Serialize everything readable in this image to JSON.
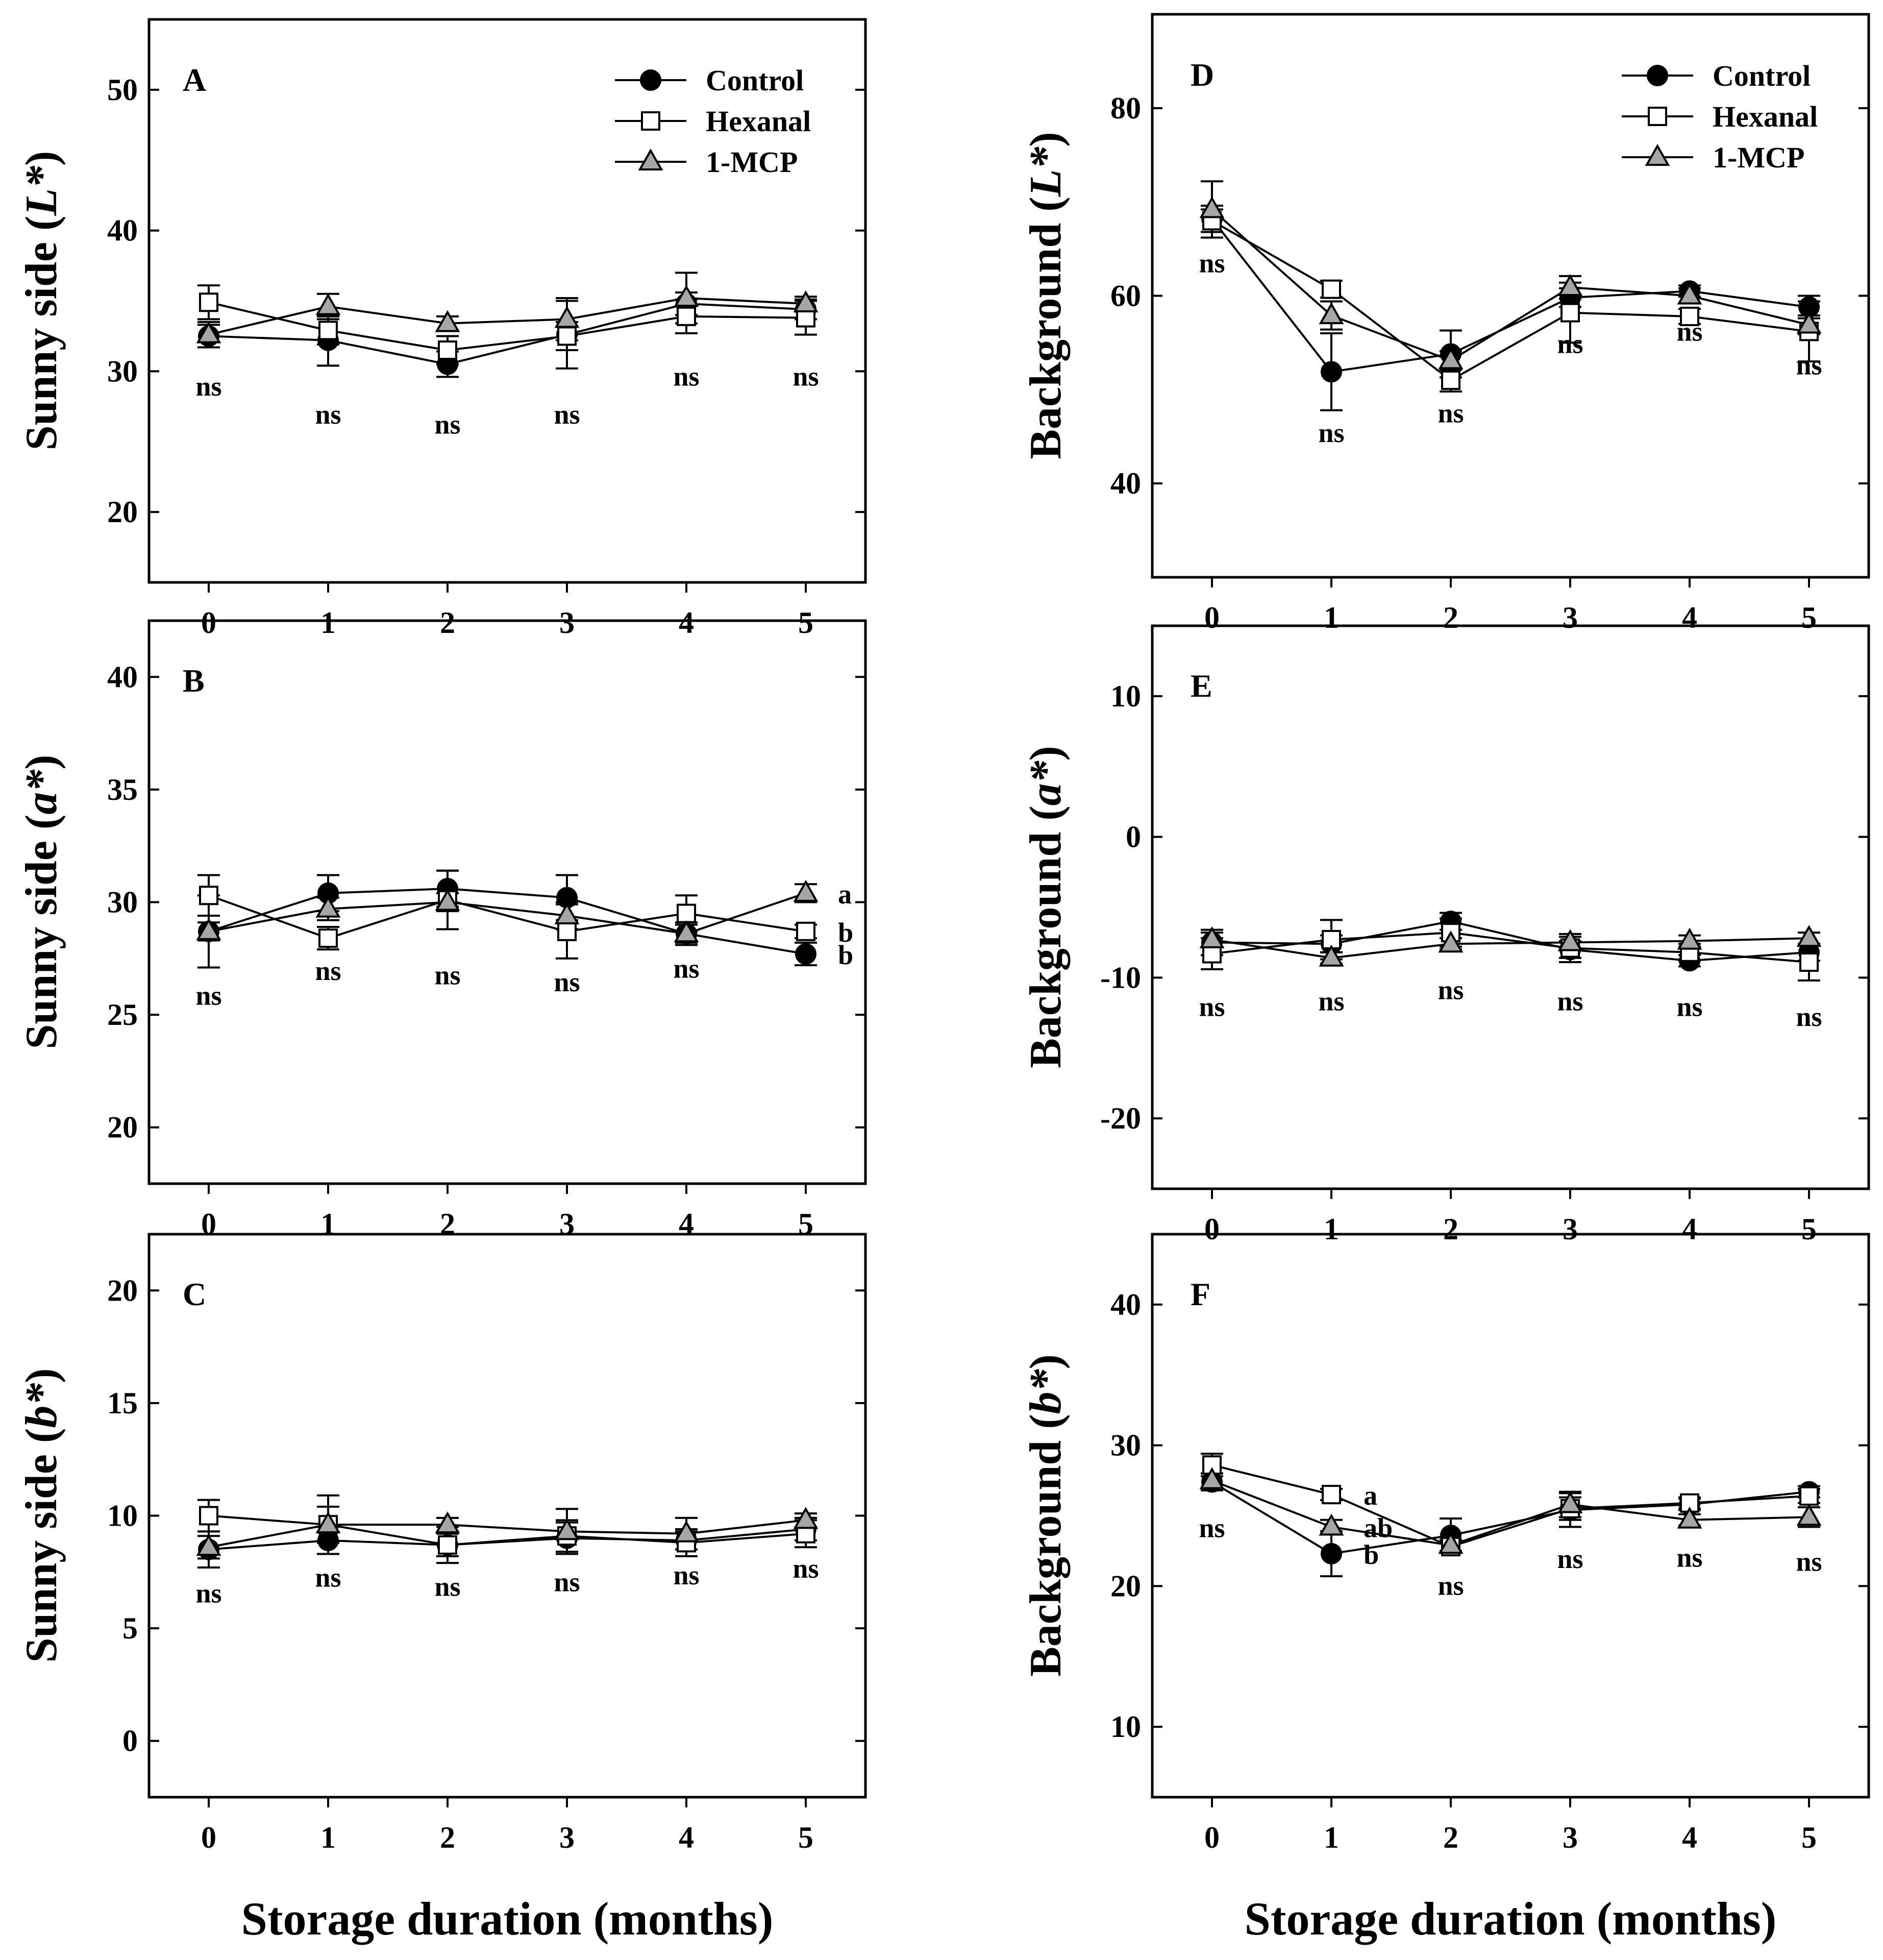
{
  "figure": {
    "xlabel": "Storage duration (months)"
  },
  "legend": {
    "entries": [
      {
        "key": "control",
        "label": "Control"
      },
      {
        "key": "hexanal",
        "label": "Hexanal"
      },
      {
        "key": "mcp",
        "label": "1-MCP"
      }
    ]
  },
  "series_styles": {
    "control": {
      "marker": "circle",
      "fill": "#000000"
    },
    "hexanal": {
      "marker": "square",
      "fill": "#ffffff"
    },
    "mcp": {
      "marker": "triangle",
      "fill": "#a6a6a6"
    }
  },
  "chart_data": [
    {
      "id": "A",
      "type": "line",
      "panel_label": "A",
      "ylabel_prefix": "Sunny side (",
      "ylabel_italic": "L*",
      "ylabel_suffix": ")",
      "x": [
        0,
        1,
        2,
        3,
        4,
        5
      ],
      "xticks": [
        "0",
        "1",
        "2",
        "3",
        "4",
        "5"
      ],
      "ylim": [
        15,
        55
      ],
      "yticks": [
        20,
        30,
        40,
        50
      ],
      "ytick_labels": [
        "20",
        "30",
        "40",
        "50"
      ],
      "legend": true,
      "legend_position": "top-right",
      "series": [
        {
          "key": "control",
          "name": "Control",
          "values": [
            32.5,
            32.2,
            30.5,
            32.6,
            34.8,
            34.4
          ],
          "errors": [
            0.8,
            1.8,
            0.9,
            2.4,
            0.8,
            0.7
          ]
        },
        {
          "key": "hexanal",
          "name": "Hexanal",
          "values": [
            34.9,
            32.9,
            31.5,
            32.5,
            33.9,
            33.8
          ],
          "errors": [
            1.2,
            1.0,
            1.0,
            1.0,
            1.2,
            1.2
          ]
        },
        {
          "key": "mcp",
          "name": "1-MCP",
          "values": [
            32.6,
            34.6,
            33.4,
            33.7,
            35.2,
            34.8
          ],
          "errors": [
            0.9,
            0.9,
            0.5,
            1.5,
            1.8,
            0.5
          ]
        }
      ],
      "annotations": [
        {
          "x": 0,
          "y": 29.0,
          "text": "ns"
        },
        {
          "x": 1,
          "y": 27.0,
          "text": "ns"
        },
        {
          "x": 2,
          "y": 26.3,
          "text": "ns"
        },
        {
          "x": 3,
          "y": 27.0,
          "text": "ns"
        },
        {
          "x": 4,
          "y": 29.7,
          "text": "ns"
        },
        {
          "x": 5,
          "y": 29.7,
          "text": "ns"
        }
      ]
    },
    {
      "id": "B",
      "type": "line",
      "panel_label": "B",
      "ylabel_prefix": "Sunny side (",
      "ylabel_italic": "a*",
      "ylabel_suffix": ")",
      "x": [
        0,
        1,
        2,
        3,
        4,
        5
      ],
      "xticks": [
        "0",
        "1",
        "2",
        "3",
        "4",
        "5"
      ],
      "ylim": [
        17.5,
        42.5
      ],
      "yticks": [
        20,
        25,
        30,
        35,
        40
      ],
      "ytick_labels": [
        "20",
        "25",
        "30",
        "35",
        "40"
      ],
      "legend": false,
      "series": [
        {
          "key": "control",
          "name": "Control",
          "values": [
            28.7,
            30.4,
            30.6,
            30.2,
            28.6,
            27.7
          ],
          "errors": [
            1.6,
            0.8,
            0.8,
            1.0,
            0.5,
            0.5
          ]
        },
        {
          "key": "hexanal",
          "name": "Hexanal",
          "values": [
            30.3,
            28.4,
            30.1,
            28.7,
            29.5,
            28.7
          ],
          "errors": [
            0.9,
            0.5,
            1.3,
            1.2,
            0.8,
            0.3
          ]
        },
        {
          "key": "mcp",
          "name": "1-MCP",
          "values": [
            28.7,
            29.7,
            30.0,
            29.4,
            28.6,
            30.4
          ],
          "errors": [
            0.4,
            0.5,
            0.4,
            0.6,
            0.4,
            0.4
          ]
        }
      ],
      "annotations": [
        {
          "x": 0,
          "y": 25.9,
          "text": "ns"
        },
        {
          "x": 1,
          "y": 27.0,
          "text": "ns"
        },
        {
          "x": 2,
          "y": 26.8,
          "text": "ns"
        },
        {
          "x": 3,
          "y": 26.5,
          "text": "ns"
        },
        {
          "x": 4,
          "y": 27.1,
          "text": "ns"
        },
        {
          "x": 5.27,
          "y": 30.4,
          "text": "a",
          "anchor": "start"
        },
        {
          "x": 5.27,
          "y": 28.7,
          "text": "b",
          "anchor": "start"
        },
        {
          "x": 5.27,
          "y": 27.7,
          "text": "b",
          "anchor": "start"
        }
      ]
    },
    {
      "id": "C",
      "type": "line",
      "panel_label": "C",
      "ylabel_prefix": "Sunny side (",
      "ylabel_italic": "b*",
      "ylabel_suffix": ")",
      "x": [
        0,
        1,
        2,
        3,
        4,
        5
      ],
      "xticks": [
        "0",
        "1",
        "2",
        "3",
        "4",
        "5"
      ],
      "ylim": [
        -2.5,
        22.5
      ],
      "yticks": [
        0,
        5,
        10,
        15,
        20
      ],
      "ytick_labels": [
        "0",
        "5",
        "10",
        "15",
        "20"
      ],
      "legend": false,
      "series": [
        {
          "key": "control",
          "name": "Control",
          "values": [
            8.5,
            8.9,
            8.7,
            9.0,
            8.9,
            9.4
          ],
          "errors": [
            0.8,
            0.6,
            0.5,
            0.7,
            0.4,
            0.5
          ]
        },
        {
          "key": "hexanal",
          "name": "Hexanal",
          "values": [
            10.0,
            9.6,
            8.7,
            9.1,
            8.8,
            9.2
          ],
          "errors": [
            0.7,
            0.8,
            0.8,
            0.7,
            0.6,
            0.6
          ]
        },
        {
          "key": "mcp",
          "name": "1-MCP",
          "values": [
            8.6,
            9.6,
            9.6,
            9.3,
            9.2,
            9.8
          ],
          "errors": [
            0.5,
            1.3,
            0.3,
            1.0,
            0.7,
            0.3
          ]
        }
      ],
      "annotations": [
        {
          "x": 0,
          "y": 6.6,
          "text": "ns"
        },
        {
          "x": 1,
          "y": 7.3,
          "text": "ns"
        },
        {
          "x": 2,
          "y": 6.9,
          "text": "ns"
        },
        {
          "x": 3,
          "y": 7.1,
          "text": "ns"
        },
        {
          "x": 4,
          "y": 7.4,
          "text": "ns"
        },
        {
          "x": 5,
          "y": 7.7,
          "text": "ns"
        }
      ]
    },
    {
      "id": "D",
      "type": "line",
      "panel_label": "D",
      "ylabel_prefix": "Background (",
      "ylabel_italic": "L*",
      "ylabel_suffix": ")",
      "x": [
        0,
        1,
        2,
        3,
        4,
        5
      ],
      "xticks": [
        "0",
        "1",
        "2",
        "3",
        "4",
        "5"
      ],
      "ylim": [
        30,
        90
      ],
      "yticks": [
        40,
        60,
        80
      ],
      "ytick_labels": [
        "40",
        "60",
        "80"
      ],
      "legend": true,
      "legend_position": "top-right",
      "series": [
        {
          "key": "control",
          "name": "Control",
          "values": [
            68.2,
            51.9,
            53.8,
            59.8,
            60.5,
            58.8
          ],
          "errors": [
            1.4,
            4.1,
            2.5,
            1.0,
            0.6,
            1.2
          ]
        },
        {
          "key": "hexanal",
          "name": "Hexanal",
          "values": [
            68.0,
            60.7,
            51.0,
            58.2,
            57.8,
            56.2
          ],
          "errors": [
            1.2,
            0.9,
            1.2,
            3.2,
            0.8,
            3.2
          ]
        },
        {
          "key": "mcp",
          "name": "1-MCP",
          "values": [
            69.2,
            57.9,
            53.1,
            60.9,
            60.0,
            56.9
          ],
          "errors": [
            3.0,
            1.5,
            1.0,
            1.2,
            0.8,
            1.0
          ]
        }
      ],
      "annotations": [
        {
          "x": 0,
          "y": 63.6,
          "text": "ns"
        },
        {
          "x": 1,
          "y": 45.5,
          "text": "ns"
        },
        {
          "x": 2,
          "y": 47.6,
          "text": "ns"
        },
        {
          "x": 3,
          "y": 55.0,
          "text": "ns"
        },
        {
          "x": 4,
          "y": 56.3,
          "text": "ns"
        },
        {
          "x": 5,
          "y": 52.7,
          "text": "ns"
        }
      ]
    },
    {
      "id": "E",
      "type": "line",
      "panel_label": "E",
      "ylabel_prefix": "Background (",
      "ylabel_italic": "a*",
      "ylabel_suffix": ")",
      "x": [
        0,
        1,
        2,
        3,
        4,
        5
      ],
      "xticks": [
        "0",
        "1",
        "2",
        "3",
        "4",
        "5"
      ],
      "ylim": [
        -25,
        15
      ],
      "yticks": [
        -20,
        -10,
        0,
        10
      ],
      "ytick_labels": [
        "-20",
        "-10",
        "0",
        "10"
      ],
      "legend": false,
      "series": [
        {
          "key": "control",
          "name": "Control",
          "values": [
            -7.5,
            -7.6,
            -6.0,
            -8.0,
            -8.8,
            -8.2
          ],
          "errors": [
            0.9,
            0.6,
            0.6,
            0.6,
            0.4,
            0.6
          ]
        },
        {
          "key": "hexanal",
          "name": "Hexanal",
          "values": [
            -8.3,
            -7.3,
            -6.8,
            -7.9,
            -8.2,
            -8.9
          ],
          "errors": [
            1.1,
            1.4,
            1.0,
            1.0,
            0.6,
            1.3
          ]
        },
        {
          "key": "mcp",
          "name": "1-MCP",
          "values": [
            -7.3,
            -8.6,
            -7.6,
            -7.5,
            -7.4,
            -7.2
          ],
          "errors": [
            0.5,
            0.4,
            0.4,
            0.4,
            0.4,
            0.4
          ]
        }
      ],
      "annotations": [
        {
          "x": 0,
          "y": -12.0,
          "text": "ns"
        },
        {
          "x": 1,
          "y": -11.6,
          "text": "ns"
        },
        {
          "x": 2,
          "y": -10.8,
          "text": "ns"
        },
        {
          "x": 3,
          "y": -11.6,
          "text": "ns"
        },
        {
          "x": 4,
          "y": -12.0,
          "text": "ns"
        },
        {
          "x": 5,
          "y": -12.7,
          "text": "ns"
        }
      ]
    },
    {
      "id": "F",
      "type": "line",
      "panel_label": "F",
      "ylabel_prefix": "Background (",
      "ylabel_italic": "b*",
      "ylabel_suffix": ")",
      "x": [
        0,
        1,
        2,
        3,
        4,
        5
      ],
      "xticks": [
        "0",
        "1",
        "2",
        "3",
        "4",
        "5"
      ],
      "ylim": [
        5,
        45
      ],
      "yticks": [
        10,
        20,
        30,
        40
      ],
      "ytick_labels": [
        "10",
        "20",
        "30",
        "40"
      ],
      "legend": false,
      "series": [
        {
          "key": "control",
          "name": "Control",
          "values": [
            27.4,
            22.3,
            23.6,
            25.4,
            25.8,
            26.7
          ],
          "errors": [
            0.6,
            1.6,
            1.2,
            1.2,
            0.4,
            0.4
          ]
        },
        {
          "key": "hexanal",
          "name": "Hexanal",
          "values": [
            28.6,
            26.5,
            22.8,
            25.5,
            25.9,
            26.4
          ],
          "errors": [
            0.8,
            0.4,
            0.4,
            0.8,
            0.4,
            0.5
          ]
        },
        {
          "key": "mcp",
          "name": "1-MCP",
          "values": [
            27.5,
            24.2,
            22.9,
            25.8,
            24.7,
            24.9
          ],
          "errors": [
            0.5,
            0.5,
            0.4,
            0.9,
            0.4,
            0.7
          ]
        }
      ],
      "annotations": [
        {
          "x": 0,
          "y": 24.2,
          "text": "ns"
        },
        {
          "x": 1.27,
          "y": 26.5,
          "text": "a",
          "anchor": "start"
        },
        {
          "x": 1.27,
          "y": 24.2,
          "text": "ab",
          "anchor": "start"
        },
        {
          "x": 1.27,
          "y": 22.3,
          "text": "b",
          "anchor": "start"
        },
        {
          "x": 2,
          "y": 20.1,
          "text": "ns"
        },
        {
          "x": 3,
          "y": 22.0,
          "text": "ns"
        },
        {
          "x": 4,
          "y": 22.1,
          "text": "ns"
        },
        {
          "x": 5,
          "y": 21.8,
          "text": "ns"
        }
      ]
    }
  ]
}
